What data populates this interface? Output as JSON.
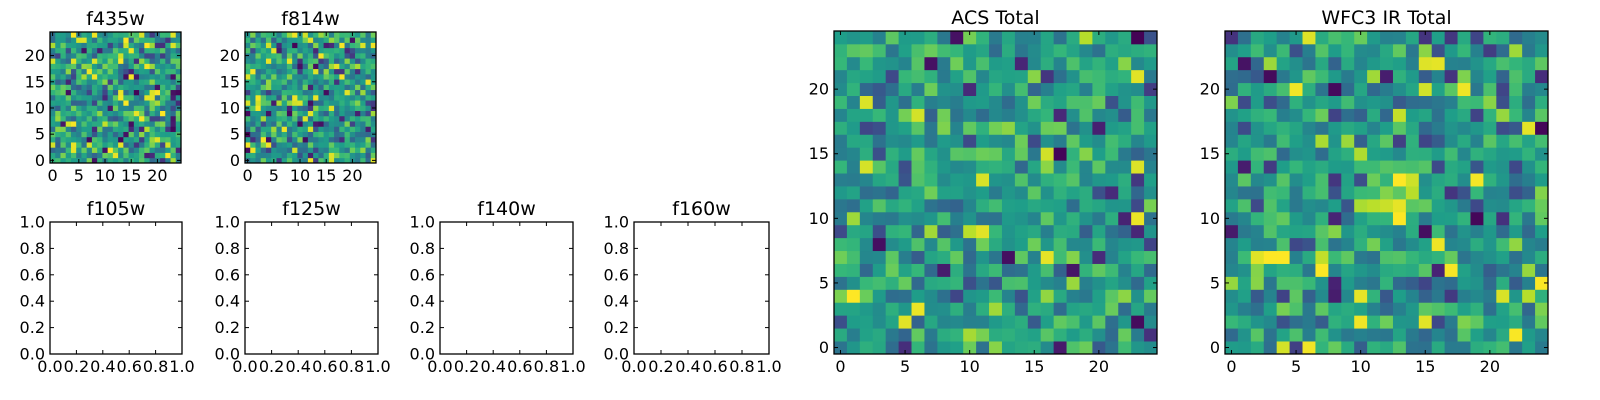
{
  "chart_data": [
    {
      "type": "heatmap",
      "title": "f435w",
      "grid": [
        25,
        25
      ],
      "xticks": [
        "0",
        "5",
        "10",
        "15",
        "20"
      ],
      "yticks": [
        "0",
        "5",
        "10",
        "15",
        "20"
      ],
      "xlim": [
        -0.5,
        24.5
      ],
      "ylim": [
        -0.5,
        24.5
      ],
      "colormap": "viridis",
      "seed": 435,
      "speckle": 0.1,
      "blob": 0.0
    },
    {
      "type": "heatmap",
      "title": "f814w",
      "grid": [
        25,
        25
      ],
      "xticks": [
        "0",
        "5",
        "10",
        "15",
        "20"
      ],
      "yticks": [
        "0",
        "5",
        "10",
        "15",
        "20"
      ],
      "xlim": [
        -0.5,
        24.5
      ],
      "ylim": [
        -0.5,
        24.5
      ],
      "colormap": "viridis",
      "seed": 814,
      "speckle": 0.1,
      "blob": 0.0
    },
    {
      "type": "empty",
      "title": "f105w",
      "xticks": [
        "0.0",
        "0.2",
        "0.4",
        "0.6",
        "0.8",
        "1.0"
      ],
      "yticks": [
        "0.0",
        "0.2",
        "0.4",
        "0.6",
        "0.8",
        "1.0"
      ],
      "xlim": [
        0,
        1
      ],
      "ylim": [
        0,
        1
      ]
    },
    {
      "type": "empty",
      "title": "f125w",
      "xticks": [
        "0.0",
        "0.2",
        "0.4",
        "0.6",
        "0.8",
        "1.0"
      ],
      "yticks": [
        "0.0",
        "0.2",
        "0.4",
        "0.6",
        "0.8",
        "1.0"
      ],
      "xlim": [
        0,
        1
      ],
      "ylim": [
        0,
        1
      ]
    },
    {
      "type": "empty",
      "title": "f140w",
      "xticks": [
        "0.0",
        "0.2",
        "0.4",
        "0.6",
        "0.8",
        "1.0"
      ],
      "yticks": [
        "0.0",
        "0.2",
        "0.4",
        "0.6",
        "0.8",
        "1.0"
      ],
      "xlim": [
        0,
        1
      ],
      "ylim": [
        0,
        1
      ]
    },
    {
      "type": "empty",
      "title": "f160w",
      "xticks": [
        "0.0",
        "0.2",
        "0.4",
        "0.6",
        "0.8",
        "1.0"
      ],
      "yticks": [
        "0.0",
        "0.2",
        "0.4",
        "0.6",
        "0.8",
        "1.0"
      ],
      "xlim": [
        0,
        1
      ],
      "ylim": [
        0,
        1
      ]
    },
    {
      "type": "heatmap",
      "title": "ACS Total",
      "grid": [
        25,
        25
      ],
      "xticks": [
        "0",
        "5",
        "10",
        "15",
        "20"
      ],
      "yticks": [
        "0",
        "5",
        "10",
        "15",
        "20"
      ],
      "xlim": [
        -0.5,
        24.5
      ],
      "ylim": [
        -0.5,
        24.5
      ],
      "colormap": "viridis",
      "seed": 1001,
      "speckle": 0.04,
      "blob": 0.0
    },
    {
      "type": "heatmap",
      "title": "WFC3 IR Total",
      "grid": [
        25,
        25
      ],
      "xticks": [
        "0",
        "5",
        "10",
        "15",
        "20"
      ],
      "yticks": [
        "0",
        "5",
        "10",
        "15",
        "20"
      ],
      "xlim": [
        -0.5,
        24.5
      ],
      "ylim": [
        -0.5,
        24.5
      ],
      "colormap": "viridis",
      "seed": 2002,
      "speckle": 0.05,
      "blob": 0.35,
      "blob_center": [
        12.5,
        12.0
      ]
    }
  ]
}
